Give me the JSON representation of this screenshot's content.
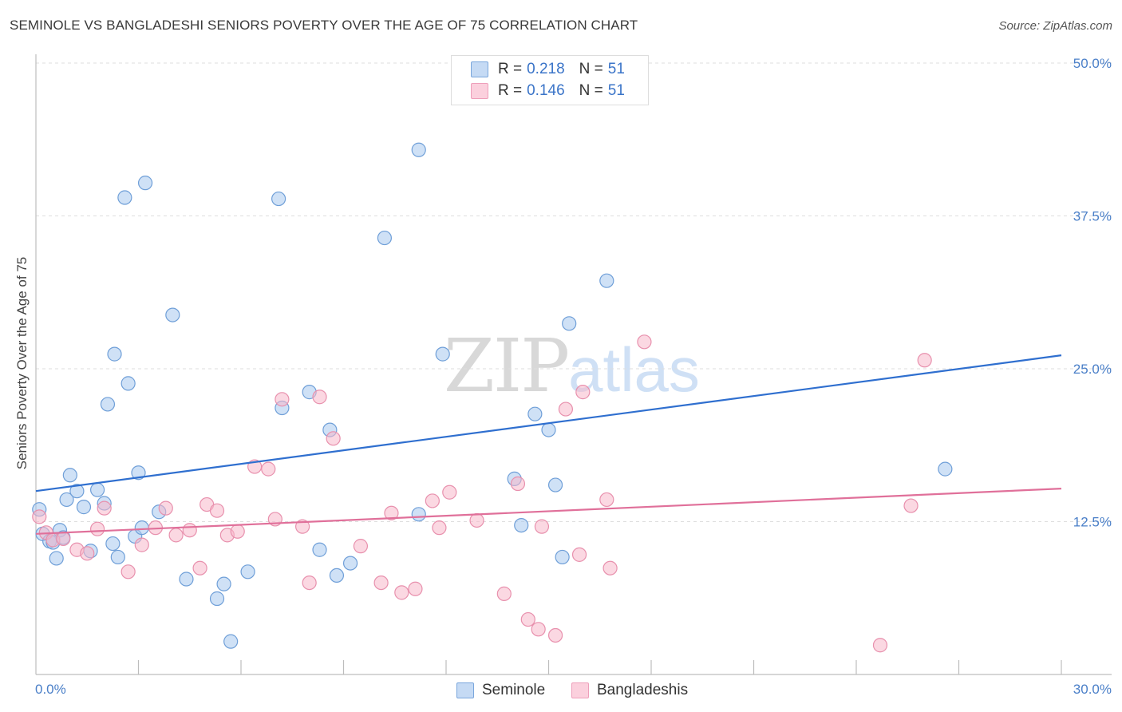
{
  "header": {
    "title": "SEMINOLE VS BANGLADESHI SENIORS POVERTY OVER THE AGE OF 75 CORRELATION CHART",
    "source": "Source: ZipAtlas.com"
  },
  "watermark": {
    "zip": "ZIP",
    "atlas": "atlas"
  },
  "legend": {
    "rows": [
      {
        "r_label": "R =",
        "r_value": "0.218",
        "n_label": "N =",
        "n_value": "51",
        "color": "#a8c8ee"
      },
      {
        "r_label": "R =",
        "r_value": "0.146",
        "n_label": "N =",
        "n_value": "51",
        "color": "#f7b8cb"
      }
    ]
  },
  "bottom_legend": {
    "series1": "Seminole",
    "series2": "Bangladeshis"
  },
  "colors": {
    "seminole_fill": "#a8c8ee",
    "seminole_stroke": "#6f9fd8",
    "seminole_line": "#2f6fcf",
    "bangladeshi_fill": "#f7b8cb",
    "bangladeshi_stroke": "#e890ad",
    "bangladeshi_line": "#e0709a",
    "tick": "#4a7fc8"
  },
  "chart_data": {
    "type": "scatter",
    "title": "SEMINOLE VS BANGLADESHI SENIORS POVERTY OVER THE AGE OF 75 CORRELATION CHART",
    "xlabel": "",
    "ylabel": "Seniors Poverty Over the Age of 75",
    "xlim": [
      0,
      30
    ],
    "ylim": [
      0,
      50
    ],
    "x_tick_labels": [
      "0.0%",
      "30.0%"
    ],
    "y_ticks": [
      12.5,
      25.0,
      37.5,
      50.0
    ],
    "y_tick_labels": [
      "12.5%",
      "25.0%",
      "37.5%",
      "50.0%"
    ],
    "grid": true,
    "legend_position": "top-center",
    "series": [
      {
        "name": "Seminole",
        "r": 0.218,
        "n": 51,
        "trend": {
          "x": [
            0,
            30
          ],
          "y": [
            15.0,
            26.1
          ]
        },
        "points": [
          [
            0.1,
            13.5
          ],
          [
            0.2,
            11.5
          ],
          [
            0.4,
            10.9
          ],
          [
            0.5,
            10.8
          ],
          [
            0.6,
            9.5
          ],
          [
            0.7,
            11.8
          ],
          [
            0.8,
            11.2
          ],
          [
            0.9,
            14.3
          ],
          [
            1.0,
            16.3
          ],
          [
            1.2,
            15.0
          ],
          [
            1.4,
            13.7
          ],
          [
            1.6,
            10.1
          ],
          [
            1.8,
            15.1
          ],
          [
            2.0,
            14.0
          ],
          [
            2.1,
            22.1
          ],
          [
            2.25,
            10.7
          ],
          [
            2.3,
            26.2
          ],
          [
            2.4,
            9.6
          ],
          [
            2.6,
            39.0
          ],
          [
            2.7,
            23.8
          ],
          [
            2.9,
            11.3
          ],
          [
            3.0,
            16.5
          ],
          [
            3.1,
            12.0
          ],
          [
            3.2,
            40.2
          ],
          [
            3.6,
            13.3
          ],
          [
            4.0,
            29.4
          ],
          [
            4.4,
            7.8
          ],
          [
            5.3,
            6.2
          ],
          [
            5.5,
            7.4
          ],
          [
            5.7,
            2.7
          ],
          [
            6.2,
            8.4
          ],
          [
            7.1,
            38.9
          ],
          [
            7.2,
            21.8
          ],
          [
            8.0,
            23.1
          ],
          [
            8.3,
            10.2
          ],
          [
            8.6,
            20.0
          ],
          [
            8.8,
            8.1
          ],
          [
            9.2,
            9.1
          ],
          [
            10.2,
            35.7
          ],
          [
            11.2,
            13.1
          ],
          [
            11.2,
            42.9
          ],
          [
            11.9,
            26.2
          ],
          [
            14.0,
            16.0
          ],
          [
            14.2,
            12.2
          ],
          [
            14.6,
            21.3
          ],
          [
            15.0,
            20.0
          ],
          [
            15.2,
            15.5
          ],
          [
            15.4,
            9.6
          ],
          [
            15.6,
            28.7
          ],
          [
            16.7,
            32.2
          ],
          [
            26.6,
            16.8
          ]
        ]
      },
      {
        "name": "Bangladeshis",
        "r": 0.146,
        "n": 51,
        "trend": {
          "x": [
            0,
            30
          ],
          "y": [
            11.5,
            15.2
          ]
        },
        "points": [
          [
            0.1,
            12.9
          ],
          [
            0.3,
            11.6
          ],
          [
            0.5,
            11.0
          ],
          [
            0.8,
            11.1
          ],
          [
            1.2,
            10.2
          ],
          [
            1.5,
            9.9
          ],
          [
            1.8,
            11.9
          ],
          [
            2.0,
            13.6
          ],
          [
            2.7,
            8.4
          ],
          [
            3.1,
            10.6
          ],
          [
            3.5,
            12.0
          ],
          [
            3.8,
            13.6
          ],
          [
            4.1,
            11.4
          ],
          [
            4.5,
            11.8
          ],
          [
            4.8,
            8.7
          ],
          [
            5.0,
            13.9
          ],
          [
            5.3,
            13.4
          ],
          [
            5.6,
            11.4
          ],
          [
            5.9,
            11.7
          ],
          [
            6.4,
            17.0
          ],
          [
            6.8,
            16.8
          ],
          [
            7.0,
            12.7
          ],
          [
            7.2,
            22.5
          ],
          [
            7.8,
            12.1
          ],
          [
            8.0,
            7.5
          ],
          [
            8.3,
            22.7
          ],
          [
            8.7,
            19.3
          ],
          [
            9.5,
            10.5
          ],
          [
            10.1,
            7.5
          ],
          [
            10.4,
            13.2
          ],
          [
            10.7,
            6.7
          ],
          [
            11.1,
            7.0
          ],
          [
            11.6,
            14.2
          ],
          [
            11.8,
            12.0
          ],
          [
            12.1,
            14.9
          ],
          [
            12.9,
            12.6
          ],
          [
            13.7,
            6.6
          ],
          [
            14.1,
            15.6
          ],
          [
            14.4,
            4.5
          ],
          [
            14.7,
            3.7
          ],
          [
            14.8,
            12.1
          ],
          [
            15.2,
            3.2
          ],
          [
            15.5,
            21.7
          ],
          [
            15.9,
            9.8
          ],
          [
            16.0,
            23.1
          ],
          [
            16.7,
            14.3
          ],
          [
            16.8,
            8.7
          ],
          [
            17.8,
            27.2
          ],
          [
            24.7,
            2.4
          ],
          [
            25.6,
            13.8
          ],
          [
            26.0,
            25.7
          ]
        ]
      }
    ]
  }
}
